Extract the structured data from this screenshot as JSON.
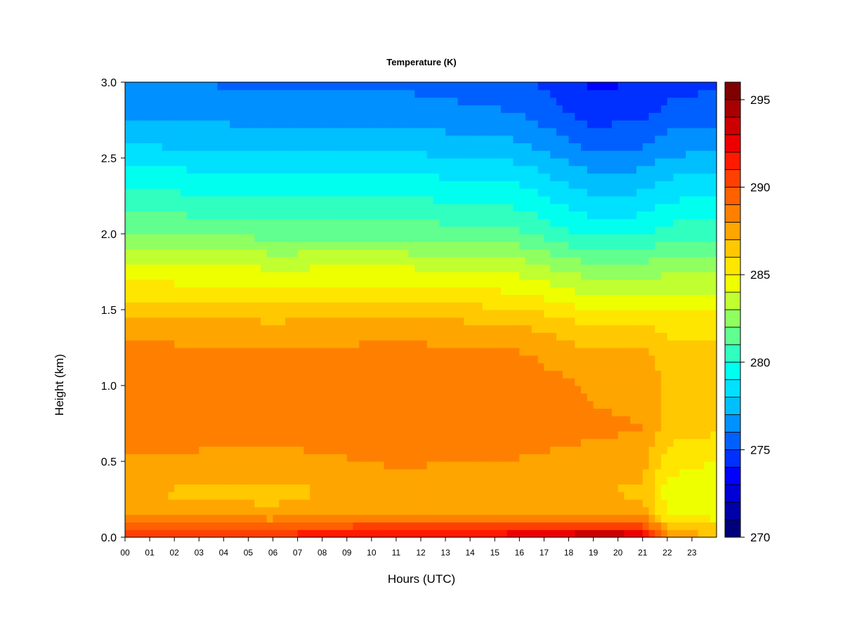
{
  "chart_data": {
    "type": "heatmap",
    "title": "Temperature (K)",
    "xlabel": "Hours (UTC)",
    "ylabel": "Height (km)",
    "x_ticks": [
      "00",
      "01",
      "02",
      "03",
      "04",
      "05",
      "06",
      "07",
      "08",
      "09",
      "10",
      "11",
      "12",
      "13",
      "14",
      "15",
      "16",
      "17",
      "18",
      "19",
      "20",
      "21",
      "22",
      "23"
    ],
    "xlim": [
      0,
      24
    ],
    "y_ticks": [
      "0.0",
      "0.5",
      "1.0",
      "1.5",
      "2.0",
      "2.5",
      "3.0"
    ],
    "ylim": [
      0,
      3.0
    ],
    "colorbar": {
      "range": [
        270,
        296
      ],
      "levels": 26,
      "tick_values": [
        270,
        275,
        280,
        285,
        290,
        295
      ],
      "tick_labels": [
        "270",
        "275",
        "280",
        "285",
        "290",
        "295"
      ],
      "colors": [
        "#00007a",
        "#0000a8",
        "#0000d6",
        "#0000ff",
        "#0030ff",
        "#0060ff",
        "#0090ff",
        "#00bfff",
        "#00e0ff",
        "#00ffee",
        "#30ffc0",
        "#60ff90",
        "#90ff60",
        "#c0ff30",
        "#eeff00",
        "#ffe600",
        "#ffc800",
        "#ffa500",
        "#ff8000",
        "#ff6000",
        "#ff4000",
        "#ff1a00",
        "#ee0000",
        "#cc0000",
        "#a80000",
        "#800000"
      ]
    },
    "profile": {
      "height_km": [
        0.0,
        0.05,
        0.1,
        0.15,
        0.3,
        0.5,
        0.7,
        1.0,
        1.2,
        1.4,
        1.6,
        1.8,
        2.0,
        2.2,
        2.4,
        2.6,
        2.8,
        3.0
      ],
      "temperature_K": [
        291.5,
        290.5,
        289.0,
        287.5,
        287.0,
        287.8,
        288.6,
        288.7,
        288.3,
        287.3,
        285.5,
        283.8,
        281.7,
        280.3,
        279.0,
        277.6,
        276.5,
        275.8
      ]
    },
    "time_adjustments": [
      {
        "hour": 0,
        "upper_shift_K": 0.3,
        "lower_shift_K": 0.0
      },
      {
        "hour": 6,
        "upper_shift_K": 0.0,
        "lower_shift_K": -0.3
      },
      {
        "hour": 11,
        "upper_shift_K": 0.0,
        "lower_shift_K": 0.4
      },
      {
        "hour": 16,
        "upper_shift_K": -0.5,
        "lower_shift_K": 0.2
      },
      {
        "hour": 19,
        "upper_shift_K": -2.0,
        "lower_shift_K": 0.0
      },
      {
        "hour": 21,
        "upper_shift_K": -1.8,
        "lower_shift_K": -0.2
      },
      {
        "hour": 22,
        "upper_shift_K": -1.2,
        "lower_shift_K": -2.5
      },
      {
        "hour": 24,
        "upper_shift_K": -1.0,
        "lower_shift_K": -3.0
      }
    ],
    "surface_hot_layer": [
      {
        "hour": 0,
        "delta_K": 0.0
      },
      {
        "hour": 14,
        "delta_K": 0.5
      },
      {
        "hour": 17,
        "delta_K": 1.8
      },
      {
        "hour": 19.5,
        "delta_K": 3.8
      },
      {
        "hour": 21,
        "delta_K": 2.0
      },
      {
        "hour": 22,
        "delta_K": -1.0
      },
      {
        "hour": 24,
        "delta_K": -2.0
      }
    ]
  }
}
